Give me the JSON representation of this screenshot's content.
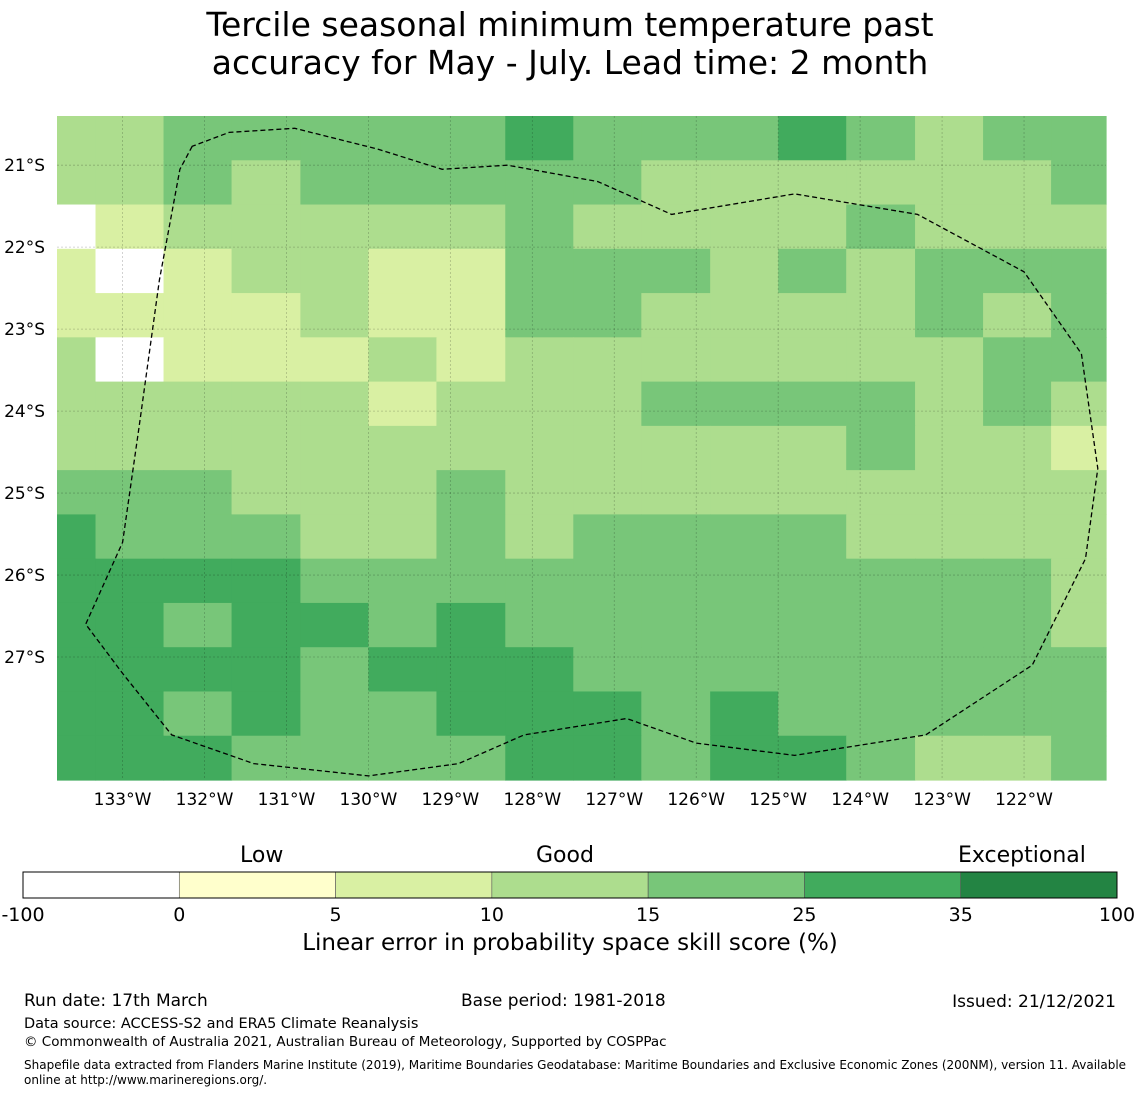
{
  "title_line1": "Tercile seasonal minimum temperature past",
  "title_line2": "accuracy for May - July. Lead time: 2 month",
  "map": {
    "lon_labels": [
      "133°W",
      "132°W",
      "131°W",
      "130°W",
      "129°W",
      "128°W",
      "127°W",
      "126°W",
      "125°W",
      "124°W",
      "123°W",
      "122°W"
    ],
    "lat_labels": [
      "21°S",
      "22°S",
      "23°S",
      "24°S",
      "25°S",
      "26°S",
      "27°S"
    ],
    "lon_range": [
      -133.8,
      -121.0
    ],
    "lat_range": [
      -28.5,
      -20.4
    ],
    "grid_columns_lon_start": [
      -133.8,
      -133.33,
      -132.5,
      -131.67,
      -130.83,
      -130.0,
      -129.17,
      -128.33,
      -127.5,
      -126.67,
      -125.83,
      -125.0,
      -124.17,
      -123.33,
      -122.5,
      -121.67
    ],
    "grid_rows": [
      [
        3,
        3,
        4,
        4,
        4,
        4,
        4,
        5,
        4,
        4,
        4,
        5,
        4,
        3,
        4,
        4
      ],
      [
        3,
        3,
        4,
        3,
        4,
        4,
        4,
        4,
        4,
        3,
        3,
        3,
        3,
        3,
        3,
        4
      ],
      [
        0,
        2,
        3,
        3,
        3,
        3,
        3,
        4,
        3,
        3,
        3,
        3,
        4,
        3,
        3,
        3
      ],
      [
        2,
        0,
        2,
        3,
        3,
        2,
        2,
        4,
        4,
        4,
        3,
        4,
        3,
        4,
        4,
        4
      ],
      [
        2,
        2,
        2,
        2,
        3,
        2,
        2,
        4,
        4,
        3,
        3,
        3,
        3,
        4,
        3,
        4
      ],
      [
        3,
        0,
        2,
        2,
        2,
        3,
        2,
        3,
        3,
        3,
        3,
        3,
        3,
        3,
        4,
        4
      ],
      [
        3,
        3,
        3,
        3,
        3,
        2,
        3,
        3,
        3,
        4,
        4,
        4,
        4,
        3,
        4,
        3
      ],
      [
        3,
        3,
        3,
        3,
        3,
        3,
        3,
        3,
        3,
        3,
        3,
        3,
        4,
        3,
        3,
        2
      ],
      [
        4,
        4,
        4,
        3,
        3,
        3,
        4,
        3,
        3,
        3,
        3,
        3,
        3,
        3,
        3,
        3
      ],
      [
        5,
        4,
        4,
        4,
        3,
        3,
        4,
        3,
        4,
        4,
        4,
        4,
        3,
        3,
        3,
        3
      ],
      [
        5,
        5,
        5,
        5,
        4,
        4,
        4,
        4,
        4,
        4,
        4,
        4,
        4,
        4,
        4,
        3
      ],
      [
        5,
        5,
        4,
        5,
        5,
        4,
        5,
        4,
        4,
        4,
        4,
        4,
        4,
        4,
        4,
        3
      ],
      [
        5,
        5,
        5,
        5,
        4,
        5,
        5,
        5,
        4,
        4,
        4,
        4,
        4,
        4,
        4,
        4
      ],
      [
        5,
        5,
        4,
        5,
        4,
        4,
        5,
        5,
        5,
        4,
        5,
        4,
        4,
        4,
        4,
        4
      ],
      [
        5,
        5,
        5,
        4,
        4,
        4,
        4,
        5,
        5,
        4,
        5,
        5,
        4,
        3,
        3,
        4
      ]
    ],
    "eez_boundary_lonlat": [
      [
        -132.15,
        -20.77
      ],
      [
        -132.3,
        -21.05
      ],
      [
        -132.55,
        -22.4
      ],
      [
        -132.8,
        -24.2
      ],
      [
        -133.0,
        -25.6
      ],
      [
        -133.45,
        -26.6
      ],
      [
        -133.0,
        -27.2
      ],
      [
        -132.4,
        -27.95
      ],
      [
        -131.4,
        -28.3
      ],
      [
        -130.0,
        -28.45
      ],
      [
        -128.9,
        -28.3
      ],
      [
        -128.1,
        -27.95
      ],
      [
        -126.85,
        -27.75
      ],
      [
        -126.0,
        -28.05
      ],
      [
        -124.8,
        -28.2
      ],
      [
        -123.2,
        -27.95
      ],
      [
        -121.9,
        -27.1
      ],
      [
        -121.25,
        -25.8
      ],
      [
        -121.1,
        -24.7
      ],
      [
        -121.3,
        -23.3
      ],
      [
        -122.0,
        -22.3
      ],
      [
        -123.3,
        -21.6
      ],
      [
        -124.8,
        -21.35
      ],
      [
        -126.3,
        -21.6
      ],
      [
        -127.2,
        -21.2
      ],
      [
        -128.3,
        -21.0
      ],
      [
        -129.1,
        -21.05
      ],
      [
        -129.9,
        -20.8
      ],
      [
        -130.9,
        -20.55
      ],
      [
        -131.7,
        -20.6
      ],
      [
        -132.15,
        -20.77
      ]
    ]
  },
  "colorbar": {
    "words": [
      "Low",
      "Good",
      "Exceptional"
    ],
    "ticks": [
      "-100",
      "0",
      "5",
      "10",
      "15",
      "25",
      "35",
      "100"
    ],
    "colors": [
      "#ffffff",
      "#ffffcc",
      "#d9f0a3",
      "#addd8e",
      "#78c679",
      "#41ab5d",
      "#238443"
    ],
    "label": "Linear error in probability space skill score (%)"
  },
  "footer": {
    "run_date": "Run date: 17th March",
    "base_period": "Base period: 1981-2018",
    "issued": "Issued: 21/12/2021",
    "data_source": "Data source: ACCESS-S2 and ERA5 Climate Reanalysis",
    "copyright": "© Commonwealth of Australia 2021, Australian Bureau of Meteorology, Supported by COSPPac",
    "shapefile": "Shapefile data extracted from Flanders Marine Institute (2019), Maritime Boundaries Geodatabase: Maritime Boundaries and Exclusive Economic Zones (200NM), version 11. Available online at http://www.marineregions.org/."
  }
}
